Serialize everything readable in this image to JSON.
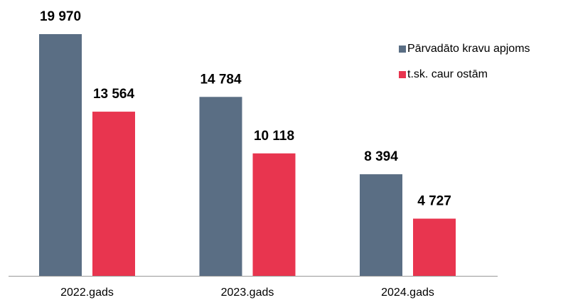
{
  "chart_data": {
    "type": "bar",
    "categories": [
      "2022.gads",
      "2023.gads",
      "2024.gads"
    ],
    "series": [
      {
        "name": "Pārvadāto kravu apjoms",
        "color": "#5a6e84",
        "values": [
          19970,
          14784,
          8394
        ],
        "value_labels": [
          "19 970",
          "14 784",
          "8 394"
        ]
      },
      {
        "name": "t.sk. caur ostām",
        "color": "#e8354f",
        "values": [
          13564,
          10118,
          4727
        ],
        "value_labels": [
          "13 564",
          "10 118",
          "4 727"
        ]
      }
    ]
  }
}
